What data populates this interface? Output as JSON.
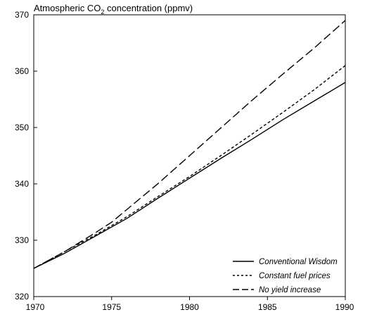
{
  "chart_data": {
    "type": "line",
    "title_main": "Atmospheric CO",
    "title_sub": "2",
    "title_rest": " concentration (ppmv)",
    "xlabel": "",
    "ylabel": "",
    "xlim": [
      1970,
      1990
    ],
    "ylim": [
      320,
      370
    ],
    "x_ticks": [
      1970,
      1975,
      1980,
      1985,
      1990
    ],
    "y_ticks": [
      320,
      330,
      340,
      350,
      360,
      370
    ],
    "grid": false,
    "legend_position": "bottom-right",
    "series": [
      {
        "name": "Conventional Wisdom",
        "style": "solid",
        "x": [
          1970,
          1972,
          1974,
          1976,
          1978,
          1980,
          1982,
          1984,
          1986,
          1988,
          1990
        ],
        "y": [
          325.0,
          327.7,
          330.8,
          333.9,
          337.5,
          341.0,
          344.5,
          347.9,
          351.4,
          354.7,
          358.0
        ]
      },
      {
        "name": "Constant fuel prices",
        "style": "dotted",
        "x": [
          1970,
          1972,
          1974,
          1976,
          1978,
          1980,
          1982,
          1984,
          1986,
          1988,
          1990
        ],
        "y": [
          325.0,
          328.0,
          331.0,
          334.2,
          337.8,
          341.3,
          345.0,
          348.8,
          352.7,
          356.7,
          361.0
        ]
      },
      {
        "name": "No yield increase",
        "style": "dashed",
        "x": [
          1970,
          1972,
          1974,
          1975,
          1976,
          1978,
          1980,
          1982,
          1984,
          1986,
          1988,
          1990
        ],
        "y": [
          325.0,
          328.0,
          331.4,
          333.2,
          335.5,
          340.1,
          345.0,
          349.9,
          354.8,
          359.5,
          364.1,
          369.0
        ]
      }
    ]
  }
}
